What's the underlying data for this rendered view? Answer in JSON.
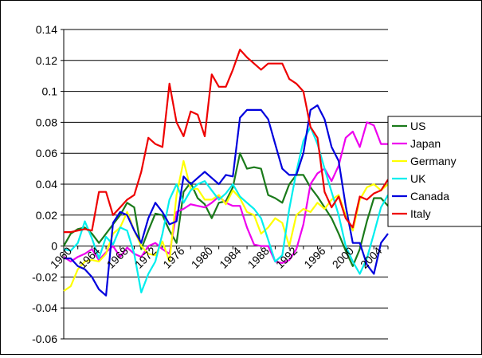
{
  "chart_data": {
    "type": "line",
    "title": "",
    "xlabel": "",
    "ylabel": "",
    "ylim": [
      -0.06,
      0.14
    ],
    "y_ticks": [
      "0.14",
      "0.12",
      "0.1",
      "0.08",
      "0.06",
      "0.04",
      "0.02",
      "0",
      "-0.02",
      "-0.04",
      "-0.06"
    ],
    "x_range": [
      1960,
      2006
    ],
    "x_tick_years": [
      1960,
      1964,
      1968,
      1972,
      1976,
      1980,
      1984,
      1988,
      1992,
      1996,
      2000,
      2004
    ],
    "x_tick_labels": [
      "1960",
      "1964",
      "1968",
      "1972",
      "1976",
      "1980",
      "1984",
      "1988",
      "1992",
      "1996",
      "2000",
      "2004"
    ],
    "grid": true,
    "legend_position": "right",
    "series": [
      {
        "name": "US",
        "color": "#1a7a1a",
        "values": [
          0.0,
          0.008,
          0.011,
          0.012,
          0.008,
          0.002,
          0.008,
          0.014,
          0.02,
          0.028,
          0.025,
          -0.002,
          0.01,
          0.021,
          0.02,
          0.01,
          0.002,
          0.035,
          0.041,
          0.031,
          0.027,
          0.018,
          0.028,
          0.029,
          0.038,
          0.06,
          0.05,
          0.051,
          0.05,
          0.033,
          0.031,
          0.028,
          0.04,
          0.046,
          0.046,
          0.038,
          0.032,
          0.025,
          0.018,
          0.008,
          -0.003,
          -0.013,
          -0.002,
          0.016,
          0.031,
          0.031,
          0.026
        ]
      },
      {
        "name": "Japan",
        "color": "#ee00ee",
        "values": [
          -0.007,
          -0.01,
          -0.007,
          -0.005,
          -0.002,
          -0.009,
          -0.004,
          0.0,
          -0.007,
          -0.001,
          -0.005,
          -0.007,
          0.0,
          0.002,
          -0.002,
          -0.005,
          0.022,
          0.024,
          0.027,
          0.026,
          0.025,
          0.028,
          0.032,
          0.028,
          0.026,
          0.026,
          0.012,
          0.001,
          0.0,
          0.0,
          -0.01,
          -0.011,
          -0.009,
          -0.002,
          0.014,
          0.04,
          0.047,
          0.05,
          0.042,
          0.052,
          0.07,
          0.074,
          0.064,
          0.08,
          0.078,
          0.066,
          0.066
        ]
      },
      {
        "name": "Germany",
        "color": "#ffff00",
        "values": [
          -0.029,
          -0.026,
          -0.015,
          -0.01,
          -0.009,
          -0.01,
          -0.005,
          0.008,
          0.012,
          0.022,
          0.01,
          0.0,
          -0.005,
          -0.006,
          0.003,
          -0.01,
          0.033,
          0.055,
          0.037,
          0.037,
          0.03,
          0.03,
          0.033,
          0.027,
          0.036,
          0.031,
          0.022,
          0.02,
          0.008,
          0.012,
          0.018,
          0.015,
          0.0,
          0.02,
          0.024,
          0.022,
          0.028,
          0.024,
          0.03,
          0.033,
          0.02,
          0.01,
          0.03,
          0.038,
          0.04,
          0.036,
          0.04
        ]
      },
      {
        "name": "UK",
        "color": "#00eeee",
        "values": [
          -0.002,
          -0.003,
          0.002,
          0.016,
          0.005,
          -0.008,
          0.006,
          0.001,
          0.012,
          0.01,
          -0.005,
          -0.03,
          -0.018,
          -0.01,
          0.008,
          0.03,
          0.04,
          0.028,
          0.036,
          0.04,
          0.042,
          0.036,
          0.03,
          0.034,
          0.04,
          0.032,
          0.028,
          0.024,
          0.018,
          0.004,
          -0.01,
          -0.006,
          0.024,
          0.048,
          0.068,
          0.077,
          0.066,
          0.05,
          0.035,
          0.02,
          0.0,
          -0.01,
          -0.018,
          -0.008,
          0.008,
          0.025,
          0.033
        ]
      },
      {
        "name": "Canada",
        "color": "#0000dd",
        "values": [
          -0.008,
          -0.008,
          -0.013,
          -0.015,
          -0.02,
          -0.028,
          -0.032,
          0.015,
          0.022,
          0.02,
          0.01,
          0.002,
          0.018,
          0.028,
          0.022,
          0.014,
          0.016,
          0.045,
          0.04,
          0.044,
          0.048,
          0.044,
          0.04,
          0.046,
          0.045,
          0.083,
          0.088,
          0.088,
          0.088,
          0.082,
          0.066,
          0.05,
          0.046,
          0.046,
          0.06,
          0.088,
          0.091,
          0.082,
          0.064,
          0.055,
          0.026,
          0.002,
          0.002,
          -0.012,
          -0.018,
          0.002,
          0.008
        ]
      },
      {
        "name": "Italy",
        "color": "#ee0000",
        "values": [
          0.009,
          0.009,
          0.01,
          0.011,
          0.01,
          0.035,
          0.035,
          0.02,
          0.025,
          0.03,
          0.033,
          0.048,
          0.07,
          0.066,
          0.064,
          0.105,
          0.08,
          0.071,
          0.087,
          0.085,
          0.071,
          0.111,
          0.103,
          0.103,
          0.114,
          0.127,
          0.122,
          0.118,
          0.114,
          0.118,
          0.118,
          0.118,
          0.108,
          0.105,
          0.1,
          0.077,
          0.07,
          0.035,
          0.025,
          0.032,
          0.018,
          0.012,
          0.032,
          0.03,
          0.034,
          0.036,
          0.043
        ]
      }
    ]
  }
}
